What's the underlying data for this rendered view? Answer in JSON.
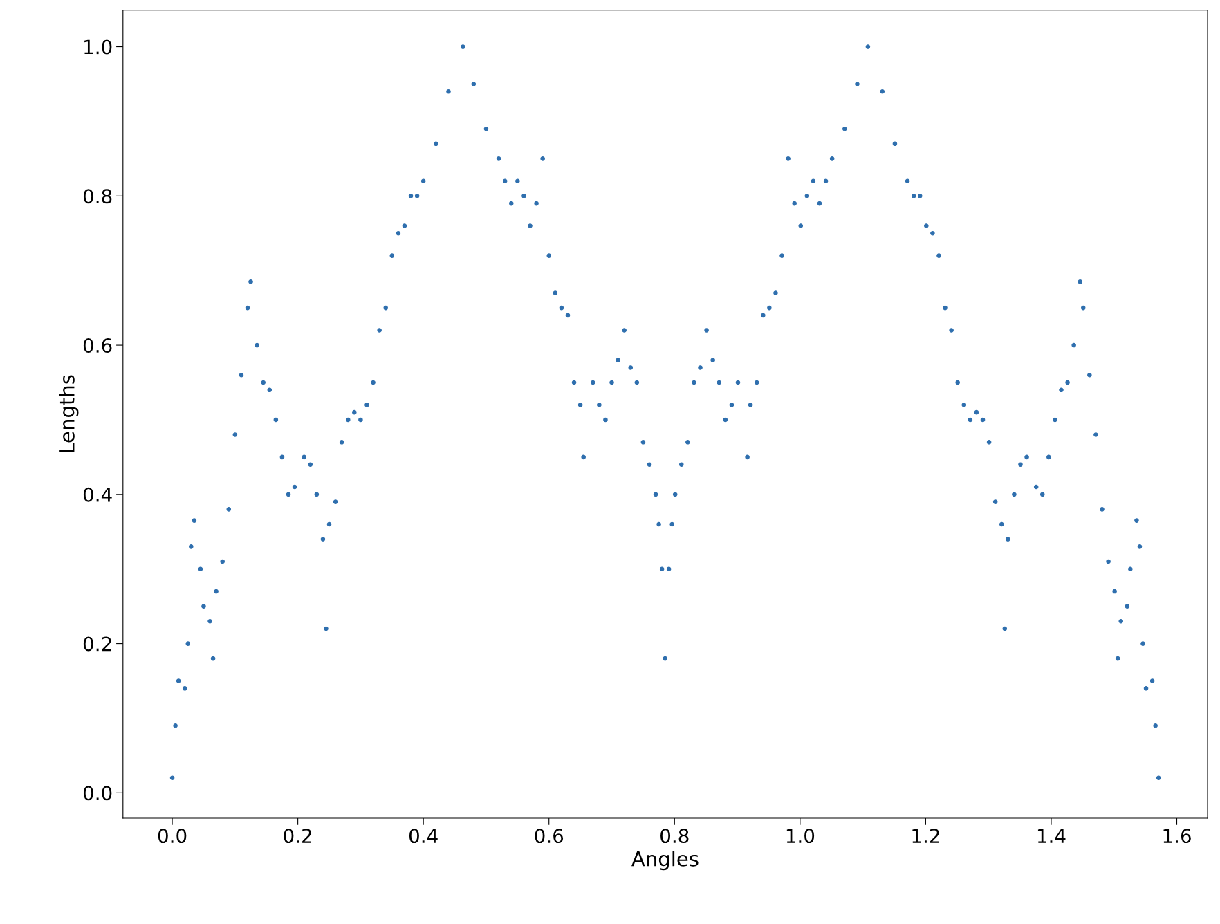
{
  "chart_data": {
    "type": "scatter",
    "xlabel": "Angles",
    "ylabel": "Lengths",
    "marker": "circle",
    "grid": false,
    "xlim": [
      -0.0785,
      1.649
    ],
    "ylim": [
      -0.034,
      1.049
    ],
    "xticks": [
      {
        "value": 0.0,
        "label": "0.0"
      },
      0.2,
      0.4,
      0.6,
      0.8,
      {
        "value": 1.0,
        "label": "1.0"
      },
      1.2,
      1.4,
      1.6
    ],
    "yticks": [
      {
        "value": 0.0,
        "label": "0.0"
      },
      0.2,
      0.4,
      0.6,
      0.8,
      {
        "value": 1.0,
        "label": "1.0"
      }
    ],
    "series": [
      {
        "color": "#2f6fae",
        "x": [
          0.0,
          0.005,
          0.01,
          0.02,
          0.025,
          0.03,
          0.035,
          0.045,
          0.05,
          0.06,
          0.065,
          0.07,
          0.08,
          0.09,
          0.1,
          0.11,
          0.12,
          0.125,
          0.135,
          0.145,
          0.155,
          0.165,
          0.175,
          0.185,
          0.195,
          0.21,
          0.22,
          0.23,
          0.24,
          0.245,
          0.25,
          0.26,
          0.27,
          0.28,
          0.29,
          0.3,
          0.31,
          0.32,
          0.33,
          0.34,
          0.35,
          0.36,
          0.37,
          0.38,
          0.39,
          0.4,
          0.42,
          0.44,
          0.463,
          0.48,
          0.5,
          0.52,
          0.53,
          0.54,
          0.55,
          0.56,
          0.57,
          0.58,
          0.59,
          0.6,
          0.61,
          0.62,
          0.63,
          0.64,
          0.65,
          0.655,
          0.67,
          0.68,
          0.69,
          0.7,
          0.71,
          0.72,
          0.73,
          0.74,
          0.75,
          0.76,
          0.77,
          0.775,
          0.78,
          0.785,
          0.791,
          0.796,
          0.801,
          0.811,
          0.821,
          0.831,
          0.841,
          0.851,
          0.861,
          0.871,
          0.881,
          0.891,
          0.901,
          0.916,
          0.921,
          0.931,
          0.941,
          0.951,
          0.961,
          0.971,
          0.981,
          0.991,
          1.001,
          1.011,
          1.021,
          1.031,
          1.041,
          1.051,
          1.071,
          1.091,
          1.108,
          1.131,
          1.151,
          1.171,
          1.181,
          1.191,
          1.201,
          1.211,
          1.221,
          1.231,
          1.241,
          1.251,
          1.261,
          1.271,
          1.281,
          1.291,
          1.301,
          1.311,
          1.321,
          1.326,
          1.331,
          1.341,
          1.351,
          1.361,
          1.376,
          1.386,
          1.396,
          1.406,
          1.416,
          1.426,
          1.436,
          1.446,
          1.451,
          1.461,
          1.471,
          1.481,
          1.491,
          1.501,
          1.506,
          1.511,
          1.521,
          1.526,
          1.536,
          1.541,
          1.546,
          1.551,
          1.561,
          1.566,
          1.571
        ],
        "values": [
          0.02,
          0.09,
          0.15,
          0.14,
          0.2,
          0.33,
          0.365,
          0.3,
          0.25,
          0.23,
          0.18,
          0.27,
          0.31,
          0.38,
          0.48,
          0.56,
          0.65,
          0.685,
          0.6,
          0.55,
          0.54,
          0.5,
          0.45,
          0.4,
          0.41,
          0.45,
          0.44,
          0.4,
          0.34,
          0.22,
          0.36,
          0.39,
          0.47,
          0.5,
          0.51,
          0.5,
          0.52,
          0.55,
          0.62,
          0.65,
          0.72,
          0.75,
          0.76,
          0.8,
          0.8,
          0.82,
          0.87,
          0.94,
          1.0,
          0.95,
          0.89,
          0.85,
          0.82,
          0.79,
          0.82,
          0.8,
          0.76,
          0.79,
          0.85,
          0.72,
          0.67,
          0.65,
          0.64,
          0.55,
          0.52,
          0.45,
          0.55,
          0.52,
          0.5,
          0.55,
          0.58,
          0.62,
          0.57,
          0.55,
          0.47,
          0.44,
          0.4,
          0.36,
          0.3,
          0.18,
          0.3,
          0.36,
          0.4,
          0.44,
          0.47,
          0.55,
          0.57,
          0.62,
          0.58,
          0.55,
          0.5,
          0.52,
          0.55,
          0.45,
          0.52,
          0.55,
          0.64,
          0.65,
          0.67,
          0.72,
          0.85,
          0.79,
          0.76,
          0.8,
          0.82,
          0.79,
          0.82,
          0.85,
          0.89,
          0.95,
          1.0,
          0.94,
          0.87,
          0.82,
          0.8,
          0.8,
          0.76,
          0.75,
          0.72,
          0.65,
          0.62,
          0.55,
          0.52,
          0.5,
          0.51,
          0.5,
          0.47,
          0.39,
          0.36,
          0.22,
          0.34,
          0.4,
          0.44,
          0.45,
          0.41,
          0.4,
          0.45,
          0.5,
          0.54,
          0.55,
          0.6,
          0.685,
          0.65,
          0.56,
          0.48,
          0.38,
          0.31,
          0.27,
          0.18,
          0.23,
          0.25,
          0.3,
          0.365,
          0.33,
          0.2,
          0.14,
          0.15,
          0.09,
          0.02
        ]
      }
    ]
  }
}
